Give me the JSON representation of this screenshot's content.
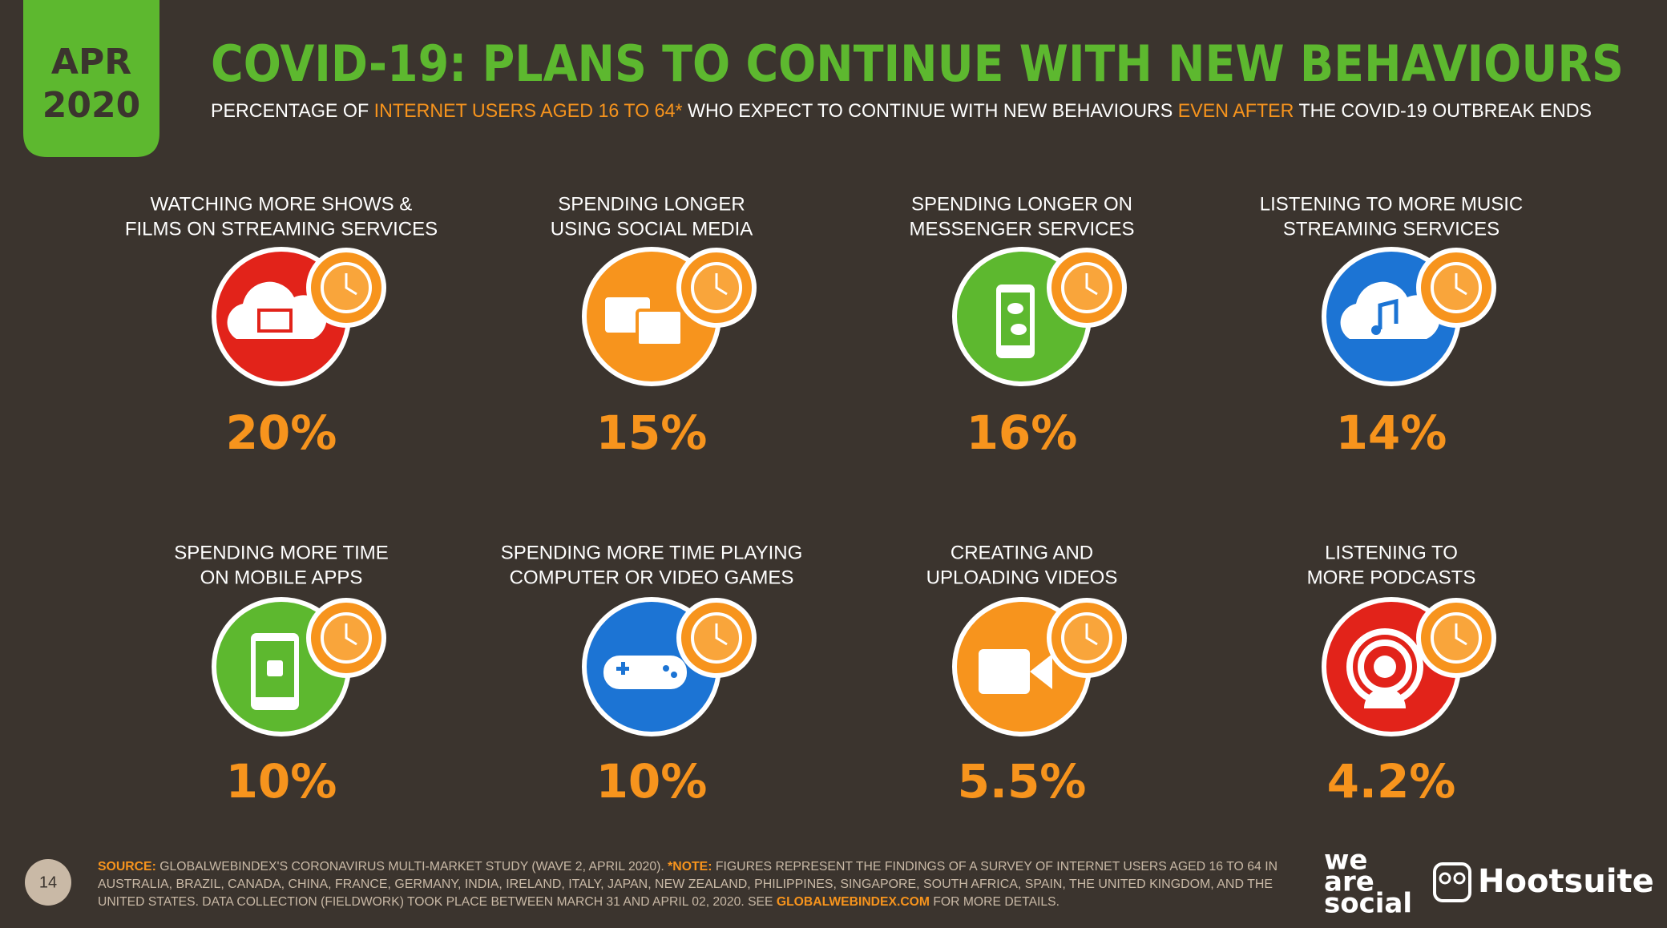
{
  "header": {
    "date": [
      "APR",
      "2020"
    ],
    "title": "COVID-19: PLANS TO CONTINUE WITH NEW BEHAVIOURS",
    "subtitle": [
      {
        "text": "PERCENTAGE OF ",
        "highlight": false
      },
      {
        "text": "INTERNET USERS AGED 16 TO 64*",
        "highlight": true
      },
      {
        "text": " WHO EXPECT TO CONTINUE WITH NEW BEHAVIOURS ",
        "highlight": false
      },
      {
        "text": "EVEN AFTER",
        "highlight": true
      },
      {
        "text": " THE COVID-19 OUTBREAK ENDS",
        "highlight": false
      }
    ]
  },
  "items": [
    {
      "label": [
        "WATCHING MORE SHOWS &",
        "FILMS ON STREAMING SERVICES"
      ],
      "value": "20%",
      "color": "#e2231a"
    },
    {
      "label": [
        "SPENDING LONGER",
        "USING SOCIAL MEDIA"
      ],
      "value": "15%",
      "color": "#f7941d"
    },
    {
      "label": [
        "SPENDING LONGER ON",
        "MESSENGER SERVICES"
      ],
      "value": "16%",
      "color": "#5db82f"
    },
    {
      "label": [
        "LISTENING TO MORE MUSIC",
        "STREAMING SERVICES"
      ],
      "value": "14%",
      "color": "#1c74d4"
    },
    {
      "label": [
        "SPENDING MORE TIME",
        "ON MOBILE APPS"
      ],
      "value": "10%",
      "color": "#5db82f"
    },
    {
      "label": [
        "SPENDING MORE TIME PLAYING",
        "COMPUTER OR VIDEO GAMES"
      ],
      "value": "10%",
      "color": "#1c74d4"
    },
    {
      "label": [
        "CREATING AND",
        "UPLOADING VIDEOS"
      ],
      "value": "5.5%",
      "color": "#f7941d"
    },
    {
      "label": [
        "LISTENING TO",
        "MORE PODCASTS"
      ],
      "value": "4.2%",
      "color": "#e2231a"
    }
  ],
  "footer": {
    "page": "14",
    "source": [
      [
        {
          "text": "SOURCE:",
          "highlight": true
        },
        {
          "text": " GLOBALWEBINDEX'S CORONAVIRUS MULTI-MARKET STUDY (WAVE 2, APRIL 2020). ",
          "highlight": false
        },
        {
          "text": "*NOTE:",
          "highlight": true
        },
        {
          "text": " FIGURES REPRESENT THE FINDINGS OF A SURVEY OF INTERNET USERS AGED 16 TO 64 IN",
          "highlight": false
        }
      ],
      [
        {
          "text": "AUSTRALIA, BRAZIL, CANADA, CHINA, FRANCE, GERMANY, INDIA, IRELAND, ITALY, JAPAN, NEW ZEALAND, PHILIPPINES, SINGAPORE, SOUTH AFRICA, SPAIN, THE UNITED KINGDOM, AND THE",
          "highlight": false
        }
      ],
      [
        {
          "text": "UNITED STATES. DATA COLLECTION (FIELDWORK) TOOK PLACE BETWEEN MARCH 31 AND APRIL 02, 2020. SEE ",
          "highlight": false
        },
        {
          "text": "GLOBALWEBINDEX.COM",
          "highlight": true
        },
        {
          "text": " FOR MORE DETAILS.",
          "highlight": false
        }
      ]
    ],
    "logos": {
      "we_are_social": [
        "we",
        "are",
        "social"
      ],
      "hootsuite": "Hootsuite"
    }
  }
}
